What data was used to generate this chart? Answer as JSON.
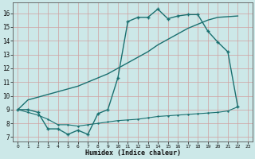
{
  "xlabel": "Humidex (Indice chaleur)",
  "bg_color": "#cce8e8",
  "grid_color": "#b0d0d0",
  "line_color": "#1a7070",
  "xlim": [
    -0.5,
    23.5
  ],
  "ylim": [
    6.7,
    16.8
  ],
  "yticks": [
    7,
    8,
    9,
    10,
    11,
    12,
    13,
    14,
    15,
    16
  ],
  "xticks": [
    0,
    1,
    2,
    3,
    4,
    5,
    6,
    7,
    8,
    9,
    10,
    11,
    12,
    13,
    14,
    15,
    16,
    17,
    18,
    19,
    20,
    21,
    22,
    23
  ],
  "curve1_x": [
    0,
    1,
    2,
    3,
    4,
    5,
    6,
    7,
    8,
    9,
    10,
    11,
    12,
    13,
    14,
    15,
    16,
    17,
    18,
    19,
    20,
    21,
    22
  ],
  "curve1_y": [
    9.0,
    9.7,
    9.9,
    10.1,
    10.3,
    10.5,
    10.7,
    11.0,
    11.3,
    11.6,
    12.0,
    12.4,
    12.8,
    13.2,
    13.7,
    14.1,
    14.5,
    14.9,
    15.2,
    15.5,
    15.7,
    15.75,
    15.8
  ],
  "curve2_x": [
    0,
    1,
    2,
    3,
    4,
    5,
    6,
    7,
    8,
    9,
    10,
    11,
    12,
    13,
    14,
    15,
    16,
    17,
    18,
    19,
    20,
    21,
    22
  ],
  "curve2_y": [
    9.0,
    9.0,
    8.8,
    7.6,
    7.6,
    7.2,
    7.5,
    7.2,
    8.7,
    9.0,
    11.3,
    15.4,
    15.7,
    15.7,
    16.3,
    15.6,
    15.8,
    15.9,
    15.9,
    14.7,
    13.9,
    13.2,
    9.2
  ],
  "curve3_x": [
    0,
    1,
    2,
    3,
    4,
    5,
    6,
    7,
    8,
    9,
    10,
    11,
    12,
    13,
    14,
    15,
    16,
    17,
    18,
    19,
    20,
    21,
    22
  ],
  "curve3_y": [
    9.0,
    8.8,
    8.6,
    8.3,
    7.9,
    7.9,
    7.8,
    7.9,
    8.0,
    8.1,
    8.2,
    8.25,
    8.3,
    8.4,
    8.5,
    8.55,
    8.6,
    8.65,
    8.7,
    8.75,
    8.8,
    8.9,
    9.2
  ]
}
